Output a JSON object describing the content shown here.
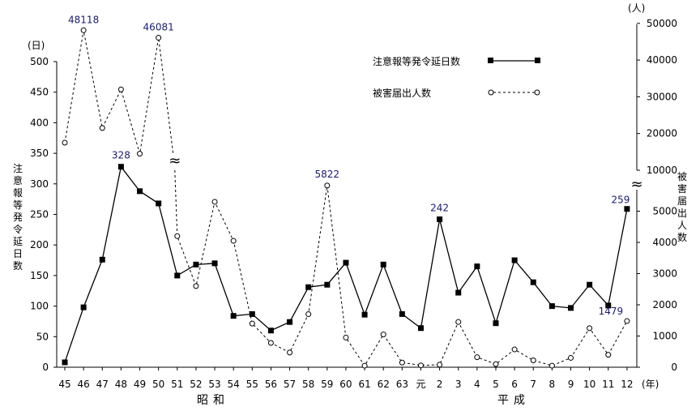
{
  "chart_data": {
    "type": "line",
    "categories": [
      "45",
      "46",
      "47",
      "48",
      "49",
      "50",
      "51",
      "52",
      "53",
      "54",
      "55",
      "56",
      "57",
      "58",
      "59",
      "60",
      "61",
      "62",
      "63",
      "元",
      "2",
      "3",
      "4",
      "5",
      "6",
      "7",
      "8",
      "9",
      "10",
      "11",
      "12"
    ],
    "x_unit": "(年)",
    "eras": [
      "昭和",
      "平成"
    ],
    "left_axis": {
      "unit": "(日)",
      "label": "注意報等発令延日数",
      "range": [
        0,
        500
      ],
      "ticks": [
        "0",
        "50",
        "100",
        "150",
        "200",
        "250",
        "300",
        "350",
        "400",
        "450",
        "500"
      ]
    },
    "right_axis": {
      "unit": "(人)",
      "label": "被害届出人数",
      "lower_range": [
        0,
        6000
      ],
      "upper_range": [
        10000,
        50000
      ],
      "lower_ticks": [
        "0",
        "1000",
        "2000",
        "3000",
        "4000",
        "5000"
      ],
      "upper_ticks": [
        "10000",
        "20000",
        "30000",
        "40000",
        "50000"
      ],
      "break_marker": "≈"
    },
    "series": [
      {
        "name": "注意報等発令延日数",
        "axis": "left",
        "marker": "square",
        "line": "solid",
        "values": [
          8,
          98,
          176,
          328,
          288,
          268,
          150,
          168,
          170,
          84,
          87,
          60,
          74,
          131,
          135,
          171,
          86,
          168,
          87,
          64,
          242,
          122,
          165,
          72,
          175,
          139,
          100,
          97,
          135,
          101,
          259
        ]
      },
      {
        "name": "被害届出人数",
        "axis": "right",
        "marker": "circle",
        "line": "dashed",
        "values": [
          17500,
          48118,
          21500,
          32000,
          14500,
          46081,
          4200,
          2600,
          5300,
          4050,
          1400,
          780,
          470,
          1700,
          5822,
          950,
          50,
          1050,
          150,
          60,
          80,
          1450,
          320,
          100,
          570,
          220,
          50,
          300,
          1250,
          400,
          1479
        ]
      }
    ],
    "callouts": [
      {
        "text": "48118",
        "series": 1,
        "index": 1
      },
      {
        "text": "46081",
        "series": 1,
        "index": 5
      },
      {
        "text": "328",
        "series": 0,
        "index": 3
      },
      {
        "text": "5822",
        "series": 1,
        "index": 14
      },
      {
        "text": "242",
        "series": 0,
        "index": 20
      },
      {
        "text": "259",
        "series": 0,
        "index": 30
      },
      {
        "text": "1479",
        "series": 1,
        "index": 30
      }
    ],
    "legend_position": "top-right"
  }
}
